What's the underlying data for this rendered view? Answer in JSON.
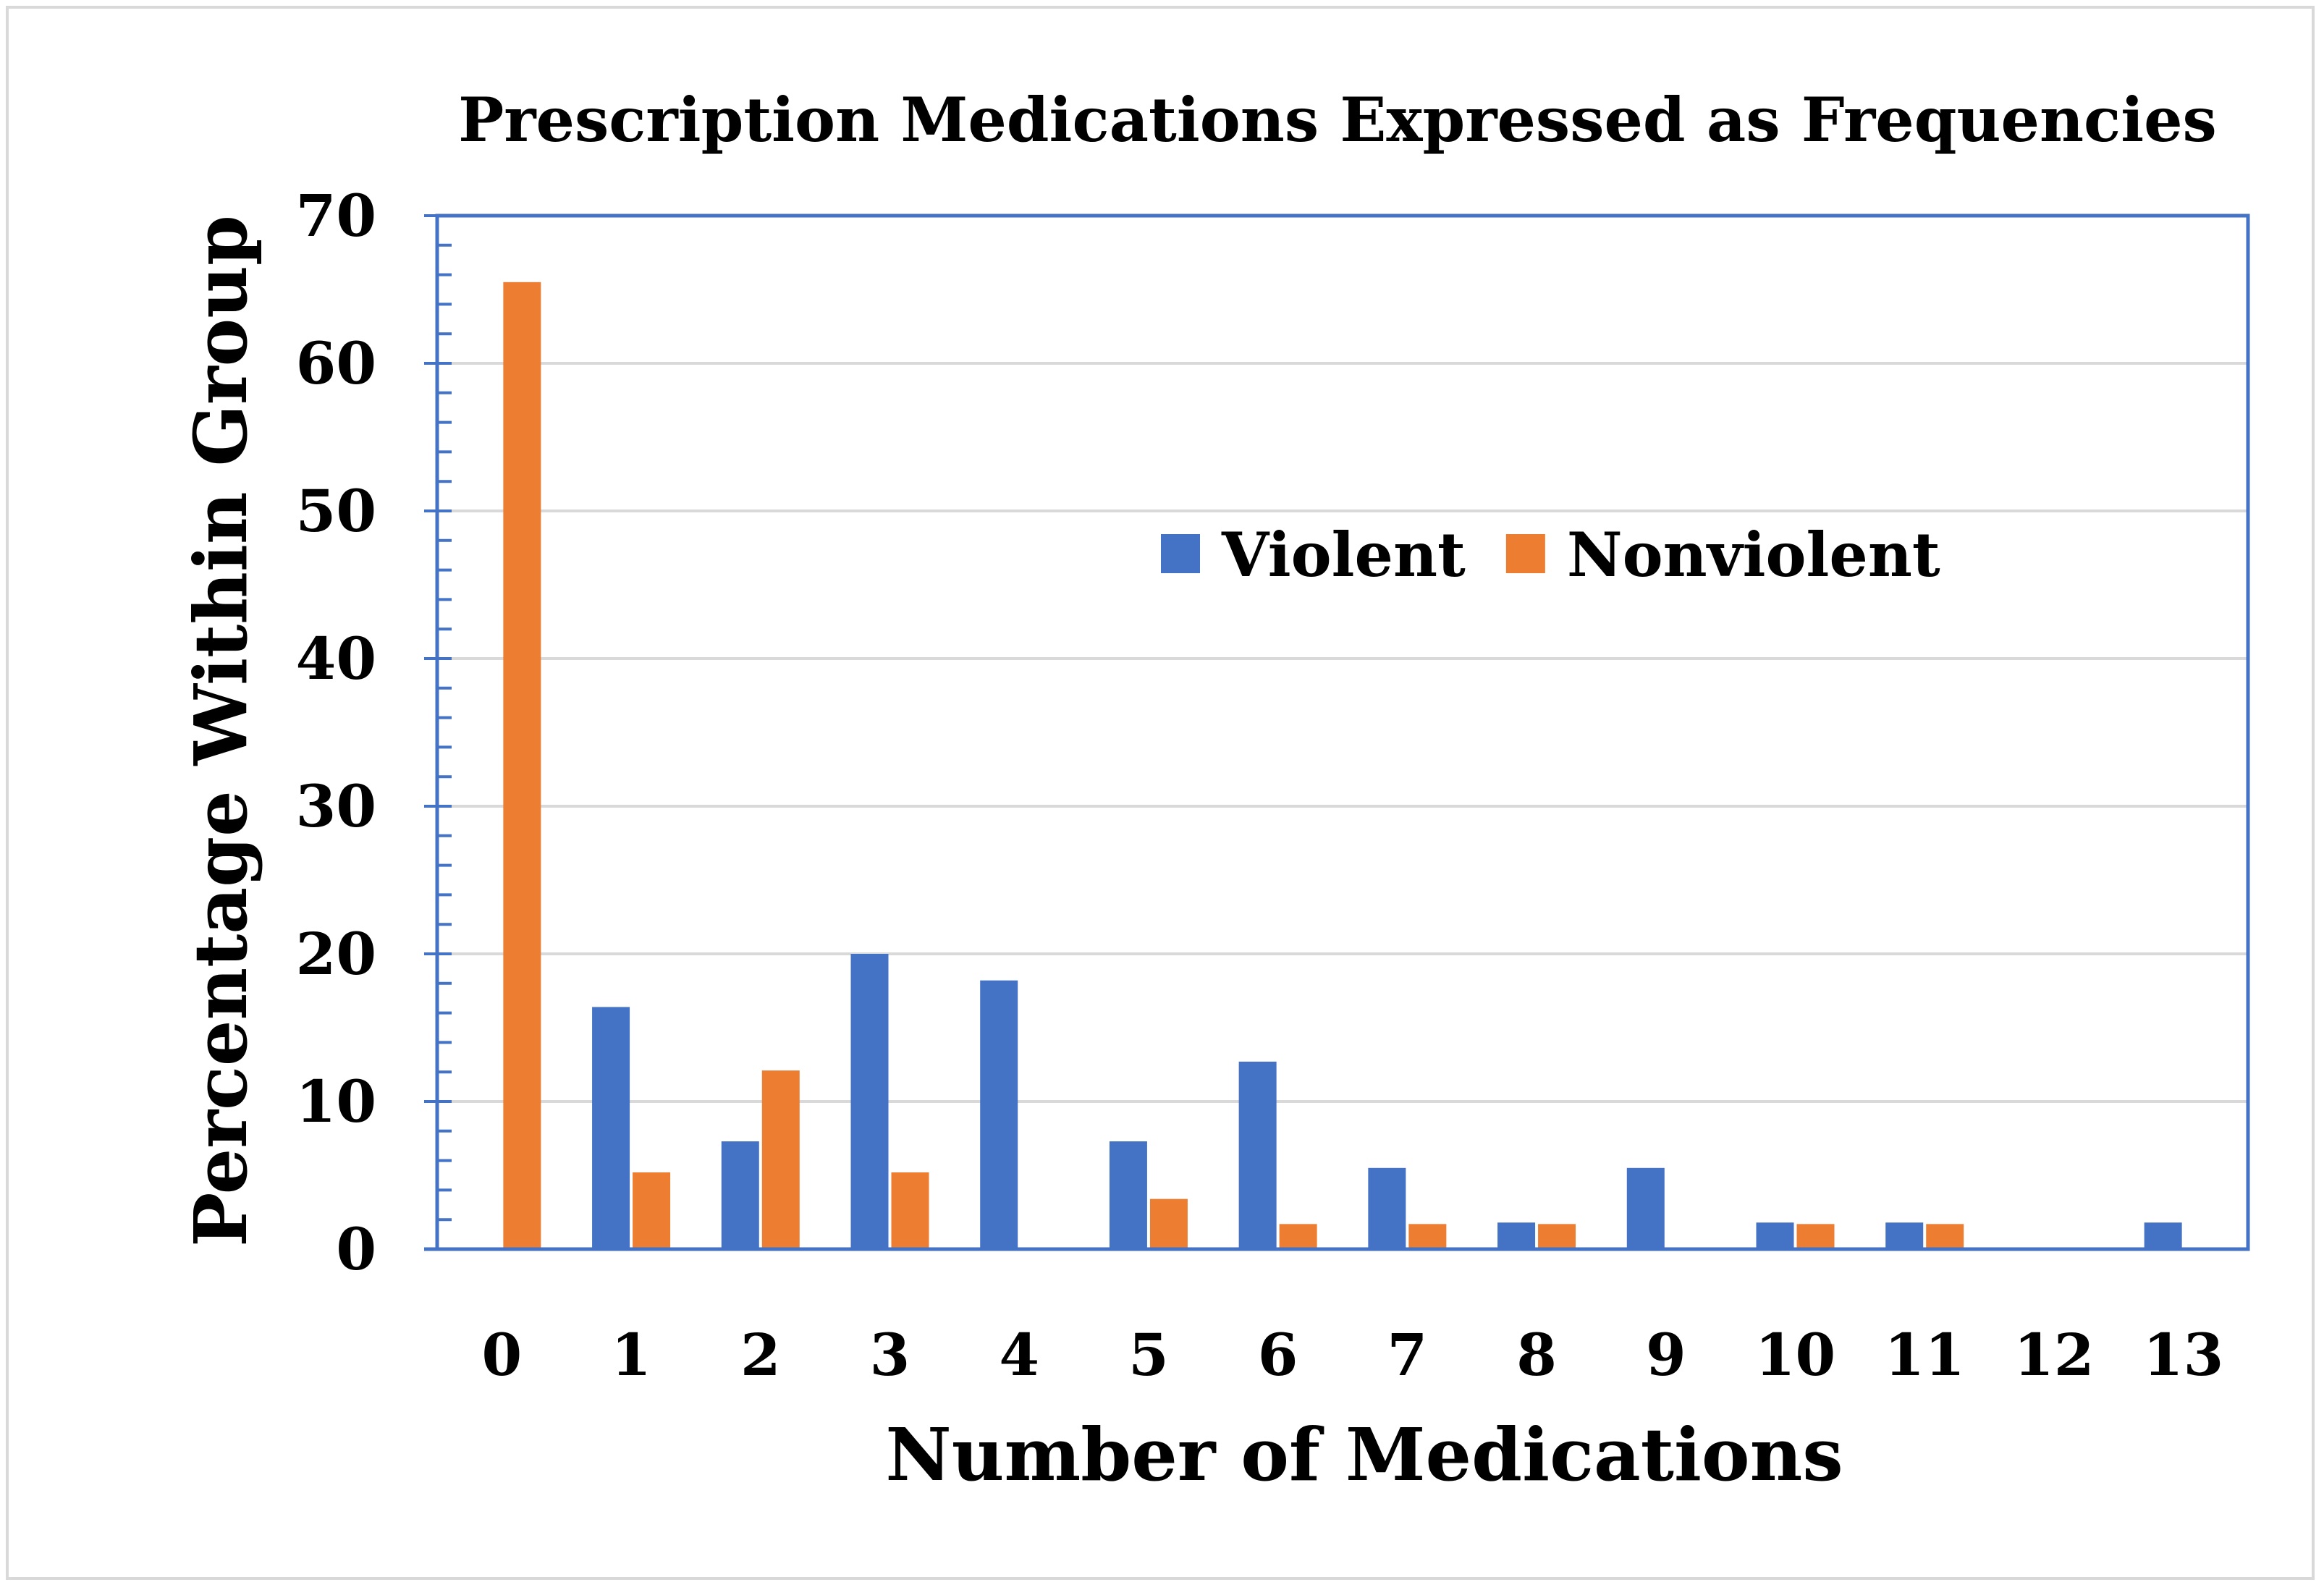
{
  "chart_data": {
    "type": "bar",
    "title": "Prescription Medications Expressed as Frequencies",
    "xlabel": "Number of Medications",
    "ylabel": "Percentage Within Group",
    "categories": [
      "0",
      "1",
      "2",
      "3",
      "4",
      "5",
      "6",
      "7",
      "8",
      "9",
      "10",
      "11",
      "12",
      "13"
    ],
    "series": [
      {
        "name": "Violent",
        "color": "#4472c4",
        "values": [
          0,
          16.4,
          7.3,
          20.0,
          18.2,
          7.3,
          12.7,
          5.5,
          1.8,
          5.5,
          1.8,
          1.8,
          0,
          1.8
        ]
      },
      {
        "name": "Nonviolent",
        "color": "#ed7d31",
        "values": [
          65.5,
          5.2,
          12.1,
          5.2,
          0,
          3.4,
          1.7,
          1.7,
          1.7,
          0,
          1.7,
          1.7,
          0,
          0
        ]
      }
    ],
    "ylim": [
      0,
      70
    ],
    "yticks": [
      "0",
      "10",
      "20",
      "30",
      "40",
      "50",
      "60",
      "70"
    ],
    "grid": true,
    "legend_position": "center-right",
    "axis_color": "#4472c4",
    "grid_color": "#d9d9d9"
  }
}
